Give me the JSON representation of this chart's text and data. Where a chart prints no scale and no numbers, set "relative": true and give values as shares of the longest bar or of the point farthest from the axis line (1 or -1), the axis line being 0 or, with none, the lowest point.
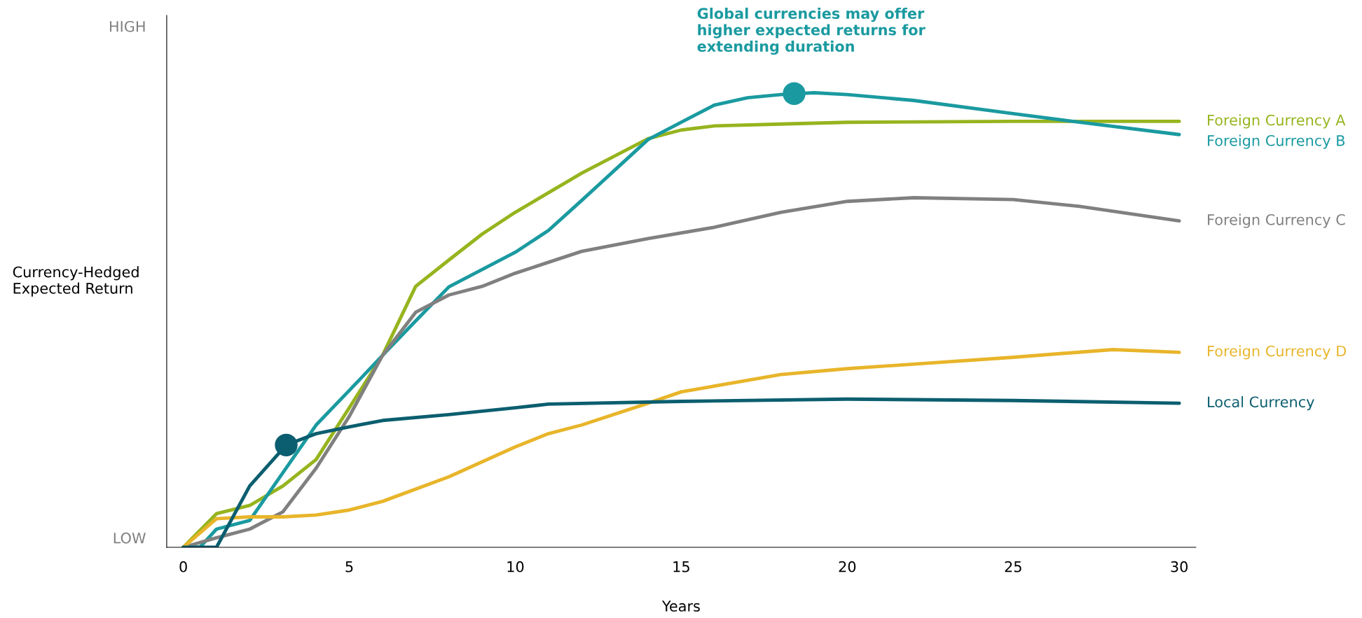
{
  "chart_data": {
    "type": "line",
    "relative": true,
    "xlabel": "Years",
    "ylabel": "Currency-Hedged\nExpected Return",
    "xlim": [
      -0.5,
      30.5
    ],
    "xticks": [
      0,
      5,
      10,
      15,
      20,
      25,
      30
    ],
    "grid": false,
    "legend": false,
    "marker": "none",
    "line_style": "solid",
    "annotations": [
      "HIGH",
      "LOW",
      {
        "text": "Global currencies may offer\nhigher expected returns for\nextending duration",
        "x": 18.4,
        "y": 0.998
      }
    ],
    "series": [
      {
        "name": "Foreign Currency A",
        "color": "#96b41e",
        "x": [
          0,
          1,
          2,
          3,
          4,
          5,
          6,
          7,
          8,
          9,
          10,
          12,
          14,
          15,
          16,
          18,
          20,
          25,
          30
        ],
        "values": [
          0,
          0.074,
          0.092,
          0.135,
          0.193,
          0.307,
          0.422,
          0.574,
          0.632,
          0.689,
          0.737,
          0.823,
          0.899,
          0.918,
          0.927,
          0.931,
          0.935,
          0.937,
          0.937
        ]
      },
      {
        "name": "Foreign Currency B",
        "color": "#1a9aa0",
        "x": [
          0,
          0.5,
          1,
          2,
          3,
          4,
          5,
          6,
          7,
          8,
          9,
          10,
          11,
          12,
          13,
          14,
          15,
          16,
          17,
          18,
          19,
          20,
          22,
          25,
          27,
          30
        ],
        "values": [
          0,
          0,
          0.04,
          0.059,
          0.164,
          0.269,
          0.345,
          0.422,
          0.498,
          0.573,
          0.611,
          0.649,
          0.697,
          0.763,
          0.83,
          0.897,
          0.935,
          0.973,
          0.989,
          0.996,
          1.0,
          0.996,
          0.983,
          0.954,
          0.935,
          0.908
        ]
      },
      {
        "name": "Foreign Currency C",
        "color": "#808080",
        "x": [
          0,
          1,
          2,
          3,
          4,
          5,
          6,
          7,
          8,
          9,
          10,
          12,
          14,
          16,
          18,
          20,
          22,
          25,
          27,
          30
        ],
        "values": [
          0,
          0.021,
          0.04,
          0.078,
          0.174,
          0.288,
          0.422,
          0.517,
          0.555,
          0.574,
          0.603,
          0.651,
          0.679,
          0.704,
          0.737,
          0.761,
          0.769,
          0.765,
          0.75,
          0.718
        ]
      },
      {
        "name": "Foreign Currency D",
        "color": "#e8b52a",
        "x": [
          0,
          1,
          2,
          3,
          4,
          5,
          6,
          8,
          10,
          11,
          12,
          14,
          15,
          18,
          20,
          25,
          28,
          30
        ],
        "values": [
          0,
          0.063,
          0.067,
          0.067,
          0.071,
          0.082,
          0.101,
          0.155,
          0.221,
          0.25,
          0.269,
          0.317,
          0.342,
          0.38,
          0.393,
          0.418,
          0.435,
          0.429
        ]
      },
      {
        "name": "Local Currency",
        "color": "#0b5e6f",
        "x": [
          0,
          1,
          2,
          3.1,
          4,
          5,
          6,
          8,
          10,
          11,
          15,
          20,
          25,
          30
        ],
        "values": [
          0,
          0,
          0.135,
          0.225,
          0.25,
          0.265,
          0.279,
          0.292,
          0.307,
          0.315,
          0.321,
          0.326,
          0.323,
          0.317
        ]
      },
      {
        "type": "scatter",
        "color": "#0b5e6f",
        "marker": "circle",
        "x": [
          3.1
        ],
        "values": [
          0.225
        ]
      },
      {
        "type": "scatter",
        "color": "#1a9aa0",
        "marker": "circle",
        "x": [
          18.4
        ],
        "values": [
          0.998
        ]
      }
    ]
  }
}
